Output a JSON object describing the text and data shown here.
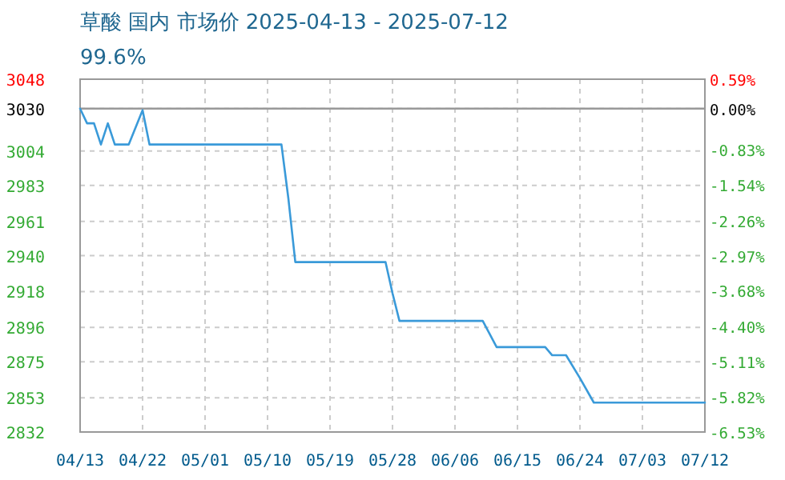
{
  "chart_data": {
    "type": "line",
    "title": "草酸 国内 市场价 2025-04-13 - 2025-07-12",
    "subtitle": "99.6%",
    "series": [
      {
        "color": "#3a9ad9",
        "x": [
          "2025-04-13",
          "2025-04-14",
          "2025-04-15",
          "2025-04-16",
          "2025-04-17",
          "2025-04-18",
          "2025-04-20",
          "2025-04-22",
          "2025-04-23",
          "2025-05-12",
          "2025-05-13",
          "2025-05-14",
          "2025-05-27",
          "2025-05-28",
          "2025-05-29",
          "2025-06-10",
          "2025-06-12",
          "2025-06-19",
          "2025-06-20",
          "2025-06-22",
          "2025-06-24",
          "2025-06-26",
          "2025-07-12"
        ],
        "values": [
          3030,
          3021,
          3021,
          3008,
          3021,
          3008,
          3008,
          3029,
          3008,
          3008,
          2975,
          2936,
          2936,
          2917,
          2900,
          2900,
          2884,
          2884,
          2879,
          2879,
          2865,
          2850,
          2850
        ]
      }
    ],
    "xlim": [
      "2025-04-13",
      "2025-07-12"
    ],
    "xticks": [
      {
        "value": "2025-04-13",
        "label": "04/13"
      },
      {
        "value": "2025-04-22",
        "label": "04/22"
      },
      {
        "value": "2025-05-01",
        "label": "05/01"
      },
      {
        "value": "2025-05-10",
        "label": "05/10"
      },
      {
        "value": "2025-05-19",
        "label": "05/19"
      },
      {
        "value": "2025-05-28",
        "label": "05/28"
      },
      {
        "value": "2025-06-06",
        "label": "06/06"
      },
      {
        "value": "2025-06-15",
        "label": "06/15"
      },
      {
        "value": "2025-06-24",
        "label": "06/24"
      },
      {
        "value": "2025-07-03",
        "label": "07/03"
      },
      {
        "value": "2025-07-12",
        "label": "07/12"
      }
    ],
    "ylim": [
      2832,
      3048
    ],
    "yticks": [
      3048,
      3030,
      3004,
      2983,
      2961,
      2940,
      2918,
      2896,
      2875,
      2853,
      2832
    ],
    "y2lim": [
      -6.53,
      0.59
    ],
    "y2ticks": [
      {
        "value": 0.59,
        "label": "0.59%"
      },
      {
        "value": 0,
        "label": "0.00%"
      },
      {
        "value": -0.83,
        "label": "-0.83%"
      },
      {
        "value": -1.54,
        "label": "-1.54%"
      },
      {
        "value": -2.26,
        "label": "-2.26%"
      },
      {
        "value": -2.97,
        "label": "-2.97%"
      },
      {
        "value": -3.68,
        "label": "-3.68%"
      },
      {
        "value": -4.4,
        "label": "-4.40%"
      },
      {
        "value": -5.11,
        "label": "-5.11%"
      },
      {
        "value": -5.82,
        "label": "-5.82%"
      },
      {
        "value": -6.53,
        "label": "-6.53%"
      }
    ],
    "ref_lines": [
      {
        "axis": "y",
        "value": 3030,
        "color": "#999999"
      }
    ],
    "grid": true,
    "marker": "none",
    "line_style": "solid"
  }
}
